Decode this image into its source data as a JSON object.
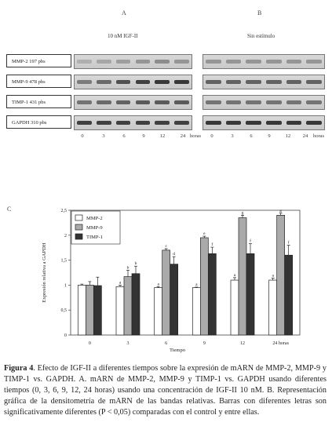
{
  "panels": {
    "a_letter": "A",
    "b_letter": "B",
    "c_letter": "C",
    "a_condition": "10 nM IGF-II",
    "b_condition": "Sin estímulo"
  },
  "gel_rows": [
    {
      "label": "MMP-2 197 pbs"
    },
    {
      "label": "MMP-9 478 pbs"
    },
    {
      "label": "TIMP-1 431 pbs"
    },
    {
      "label": "GAPDH 310 pbs"
    }
  ],
  "gel_lanes": [
    "0",
    "3",
    "6",
    "9",
    "12",
    "24"
  ],
  "gel_lane_unit": "horas",
  "chart_data": {
    "type": "bar",
    "categories": [
      "0",
      "3",
      "6",
      "9",
      "12",
      "24 horas"
    ],
    "series": [
      {
        "name": "MMP-2",
        "values": [
          1.0,
          0.97,
          0.95,
          0.95,
          1.1,
          1.1
        ],
        "errors": [
          0.02,
          0.03,
          0.02,
          0.01,
          0.05,
          0.04
        ],
        "letters": [
          "",
          "a",
          "a",
          "a",
          "a",
          "a"
        ]
      },
      {
        "name": "MMP-9",
        "values": [
          1.0,
          1.17,
          1.7,
          1.95,
          2.35,
          2.4
        ],
        "errors": [
          0.07,
          0.13,
          0.03,
          0.03,
          0.05,
          0.04
        ],
        "letters": [
          "",
          "b",
          "c",
          "e",
          "g",
          "g"
        ]
      },
      {
        "name": "TIMP-1",
        "values": [
          0.99,
          1.23,
          1.42,
          1.63,
          1.63,
          1.6
        ],
        "errors": [
          0.17,
          0.15,
          0.15,
          0.13,
          0.2,
          0.2
        ],
        "letters": [
          "",
          "b",
          "d",
          "f",
          "f",
          "f"
        ]
      }
    ],
    "colors": [
      "#ffffff",
      "#aaaaaa",
      "#333333"
    ],
    "xlabel": "Tiempo",
    "ylabel": "Expresión relativa a GAPDH",
    "ylim": [
      0,
      2.5
    ],
    "yticks": [
      "0",
      "0,5",
      "1",
      "1,5",
      "2",
      "2,5"
    ],
    "legend": "top-left",
    "grid": false
  },
  "caption": {
    "lead": "Figura 4",
    "body": ". Efecto de IGF-II a diferentes tiempos sobre la expresión de mARN de MMP-2, MMP-9 y TIMP-1 vs. GAPDH. A. mARN de MMP-2, MMP-9 y TIMP-1 vs. GAPDH usando diferentes tiempos (0, 3, 6, 9, 12, 24 horas) usando una concentración de IGF-II 10 nM. B. Representación gráfica de la densitometría de mARN de las bandas relativas. Barras con diferentes letras son significativamente diferentes (P < 0,05) comparadas con el control y entre ellas."
  }
}
